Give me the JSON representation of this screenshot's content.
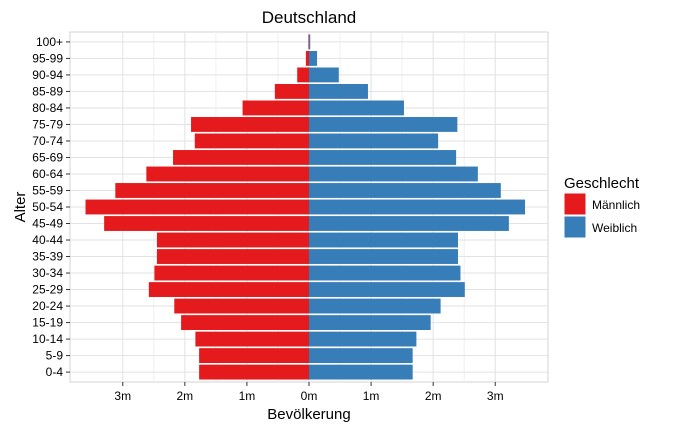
{
  "chart_data": {
    "type": "bar",
    "orientation": "horizontal",
    "title": "Deutschland",
    "xlabel": "Bevölkerung",
    "ylabel": "Alter",
    "xlim": [
      -3.85,
      3.85
    ],
    "xticks": [
      -3,
      -2,
      -1,
      0,
      1,
      2,
      3
    ],
    "xtick_labels": [
      "3m",
      "2m",
      "1m",
      "0m",
      "1m",
      "2m",
      "3m"
    ],
    "categories": [
      "0-4",
      "5-9",
      "10-14",
      "15-19",
      "20-24",
      "25-29",
      "30-34",
      "35-39",
      "40-44",
      "45-49",
      "50-54",
      "55-59",
      "60-64",
      "65-69",
      "70-74",
      "75-79",
      "80-84",
      "85-89",
      "90-94",
      "95-99",
      "100+"
    ],
    "legend": {
      "title": "Geschlecht",
      "position": "right"
    },
    "series": [
      {
        "name": "Männlich",
        "color": "#e41a1c",
        "direction": "left",
        "values": [
          1.77,
          1.77,
          1.83,
          2.06,
          2.17,
          2.58,
          2.49,
          2.45,
          2.45,
          3.3,
          3.6,
          3.12,
          2.62,
          2.19,
          1.84,
          1.9,
          1.07,
          0.55,
          0.19,
          0.05,
          0.01
        ]
      },
      {
        "name": "Weiblich",
        "color": "#377eb8",
        "direction": "right",
        "values": [
          1.67,
          1.67,
          1.73,
          1.96,
          2.12,
          2.51,
          2.44,
          2.4,
          2.4,
          3.22,
          3.48,
          3.09,
          2.72,
          2.37,
          2.08,
          2.39,
          1.53,
          0.95,
          0.48,
          0.13,
          0.02
        ]
      }
    ]
  }
}
